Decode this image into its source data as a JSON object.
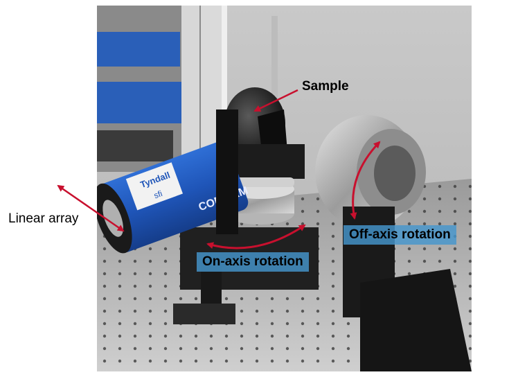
{
  "labels": {
    "sample": "Sample",
    "linear_array": "Linear array",
    "off_axis": "Off-axis rotation",
    "on_axis": "On-axis rotation"
  },
  "device": {
    "brand": "Tyndall",
    "sticker_text": "sfi",
    "side_text": "CONFIRM"
  },
  "colors": {
    "arrow": "#c8102e",
    "label_box": "#4696cd"
  }
}
